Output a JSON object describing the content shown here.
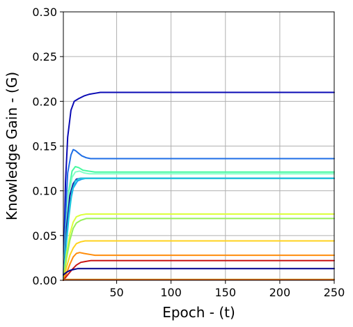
{
  "chart_data": {
    "type": "line",
    "title": "",
    "xlabel": "Epoch - (t)",
    "ylabel": "Knowledge Gain - (G)",
    "xlim": [
      1,
      250
    ],
    "ylim": [
      0,
      0.3
    ],
    "xticks": [
      50,
      100,
      150,
      200,
      250
    ],
    "xtick_labels": [
      "50",
      "100",
      "150",
      "200",
      "250"
    ],
    "yticks": [
      0,
      0.05,
      0.1,
      0.15,
      0.2,
      0.25,
      0.3
    ],
    "ytick_labels": [
      "0.00",
      "0.05",
      "0.10",
      "0.15",
      "0.20",
      "0.25",
      "0.30"
    ],
    "grid": true,
    "legend": "none",
    "series": [
      {
        "color": "#0a0ab4",
        "x": [
          1,
          3,
          5,
          8,
          11,
          15,
          20,
          25,
          30,
          35,
          40,
          250
        ],
        "y": [
          0.0,
          0.11,
          0.16,
          0.19,
          0.2,
          0.203,
          0.206,
          0.208,
          0.209,
          0.21,
          0.21,
          0.21
        ]
      },
      {
        "color": "#1e6ee6",
        "x": [
          1,
          3,
          5,
          8,
          10,
          12,
          15,
          18,
          22,
          26,
          30,
          250
        ],
        "y": [
          0.0,
          0.07,
          0.12,
          0.14,
          0.146,
          0.145,
          0.142,
          0.139,
          0.137,
          0.136,
          0.136,
          0.136
        ]
      },
      {
        "color": "#46faa0",
        "x": [
          1,
          3,
          6,
          9,
          12,
          15,
          19,
          24,
          30,
          250
        ],
        "y": [
          0.0,
          0.05,
          0.1,
          0.122,
          0.127,
          0.126,
          0.123,
          0.122,
          0.121,
          0.121
        ]
      },
      {
        "color": "#82ffc8",
        "x": [
          1,
          3,
          6,
          9,
          12,
          16,
          20,
          25,
          30,
          250
        ],
        "y": [
          0.0,
          0.05,
          0.095,
          0.115,
          0.121,
          0.122,
          0.12,
          0.119,
          0.119,
          0.119
        ]
      },
      {
        "color": "#1414a0",
        "x": [
          1,
          4,
          7,
          10,
          13,
          17,
          22,
          27,
          250
        ],
        "y": [
          0.0,
          0.06,
          0.095,
          0.108,
          0.113,
          0.114,
          0.114,
          0.114,
          0.114
        ]
      },
      {
        "color": "#1ea0f0",
        "x": [
          1,
          4,
          7,
          10,
          14,
          18,
          22,
          27,
          250
        ],
        "y": [
          0.0,
          0.05,
          0.085,
          0.103,
          0.111,
          0.113,
          0.114,
          0.114,
          0.114
        ]
      },
      {
        "color": "#1ec8dc",
        "x": [
          1,
          3,
          6,
          9,
          12,
          16,
          20,
          250
        ],
        "y": [
          0.0,
          0.03,
          0.07,
          0.1,
          0.111,
          0.114,
          0.114,
          0.114
        ]
      },
      {
        "color": "#dcff3c",
        "x": [
          1,
          4,
          7,
          10,
          13,
          17,
          22,
          28,
          35,
          250
        ],
        "y": [
          0.0,
          0.03,
          0.052,
          0.065,
          0.071,
          0.073,
          0.074,
          0.074,
          0.074,
          0.074
        ]
      },
      {
        "color": "#96f05a",
        "x": [
          1,
          4,
          7,
          10,
          13,
          17,
          22,
          28,
          35,
          250
        ],
        "y": [
          0.0,
          0.025,
          0.045,
          0.058,
          0.064,
          0.067,
          0.069,
          0.069,
          0.069,
          0.069
        ]
      },
      {
        "color": "#ffd21e",
        "x": [
          1,
          4,
          7,
          10,
          13,
          17,
          21,
          26,
          250
        ],
        "y": [
          0.0,
          0.015,
          0.028,
          0.036,
          0.041,
          0.043,
          0.044,
          0.044,
          0.044
        ]
      },
      {
        "color": "#ff8c0a",
        "x": [
          1,
          4,
          7,
          10,
          13,
          16,
          20,
          25,
          30,
          250
        ],
        "y": [
          0.0,
          0.008,
          0.018,
          0.026,
          0.03,
          0.031,
          0.03,
          0.029,
          0.028,
          0.028
        ]
      },
      {
        "color": "#c81414",
        "x": [
          1,
          5,
          9,
          13,
          17,
          21,
          26,
          32,
          250
        ],
        "y": [
          0.0,
          0.006,
          0.012,
          0.017,
          0.02,
          0.021,
          0.022,
          0.022,
          0.022
        ]
      },
      {
        "color": "#00008c",
        "x": [
          1,
          4,
          7,
          10,
          14,
          18,
          250
        ],
        "y": [
          0.006,
          0.009,
          0.011,
          0.012,
          0.013,
          0.013,
          0.013
        ]
      },
      {
        "color": "#b4b428",
        "x": [
          1,
          8,
          250
        ],
        "y": [
          0.001,
          0.001,
          0.001
        ]
      },
      {
        "color": "#e65014",
        "x": [
          1,
          8,
          250
        ],
        "y": [
          0.0005,
          0.0005,
          0.0005
        ]
      }
    ]
  }
}
